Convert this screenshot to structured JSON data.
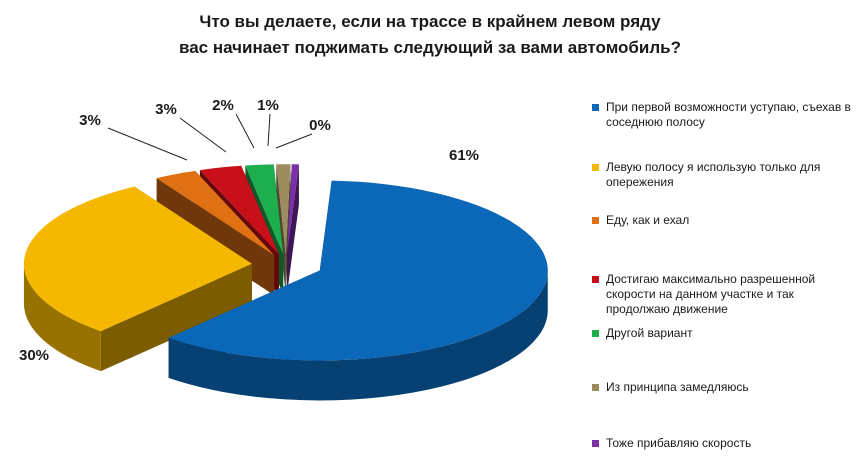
{
  "chart_data": {
    "type": "pie",
    "three_d": true,
    "title_lines": [
      "Что вы делаете, если на трассе в крайнем левом ряду",
      "вас начинает поджимать следующий за вами автомобиль?"
    ],
    "legend_position": "right",
    "series": [
      {
        "name": "При первой возможности уступаю, съехав в соседнюю полосу",
        "value": 61,
        "label": "61%",
        "color": "#0B67B8"
      },
      {
        "name": "Левую полосу я использую только для опережения",
        "value": 30,
        "label": "30%",
        "color": "#F5B800"
      },
      {
        "name": "Еду, как и ехал",
        "value": 3,
        "label": "3%",
        "color": "#E07014"
      },
      {
        "name": "Достигаю максимально разрешенной скорости на данном участке и так продолжаю движение",
        "value": 3,
        "label": "3%",
        "color": "#C8101A"
      },
      {
        "name": "Другой вариант",
        "value": 2,
        "label": "2%",
        "color": "#1DAF4E"
      },
      {
        "name": "Из принципа замедляюсь",
        "value": 1,
        "label": "1%",
        "color": "#9C8B5E"
      },
      {
        "name": "Тоже прибавляю скорость",
        "value": 0.5,
        "label": "0%",
        "color": "#7B2FA8"
      }
    ]
  }
}
